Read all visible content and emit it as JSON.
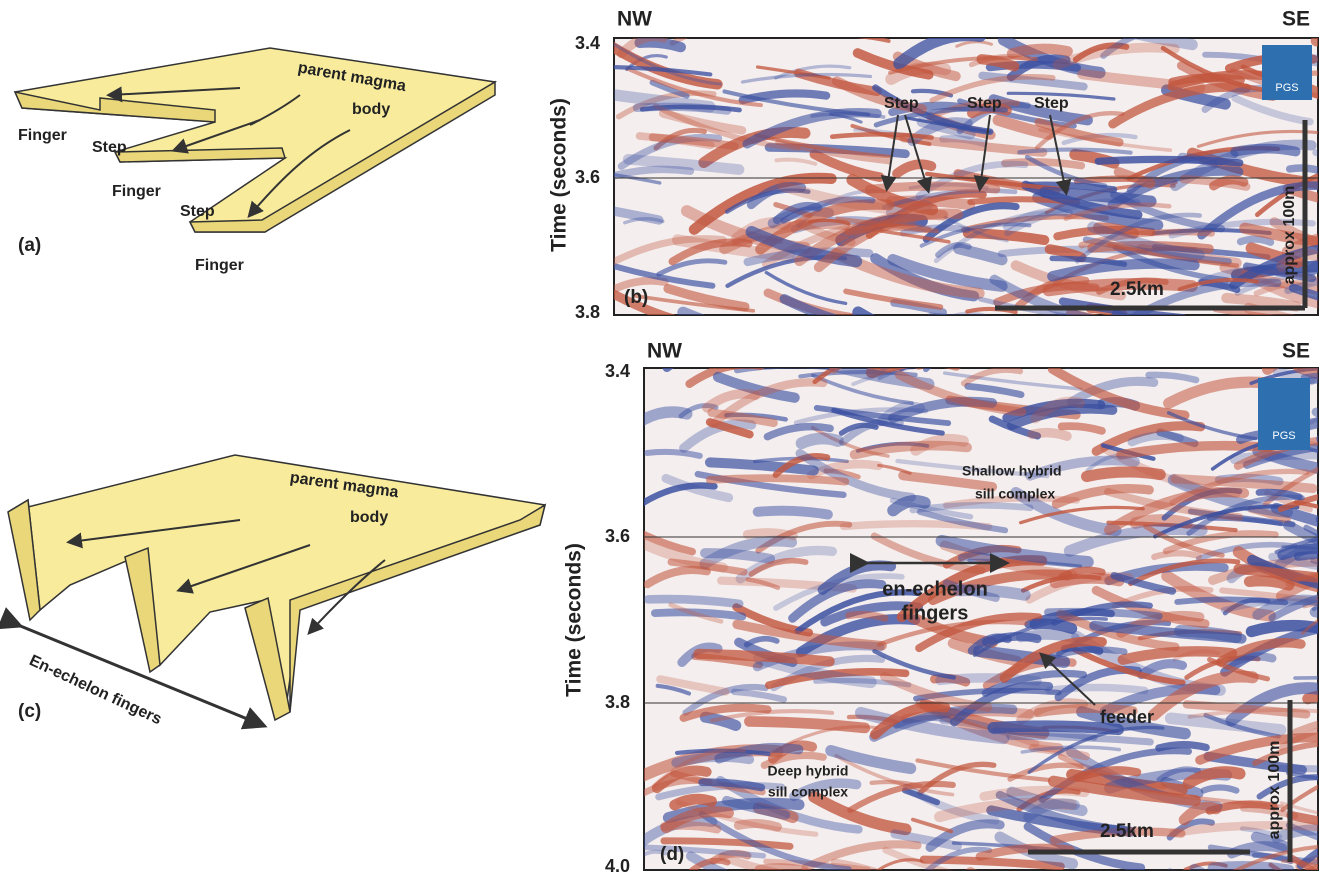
{
  "panels": [
    {
      "label": "(a)",
      "annotations": [
        "parent  magma",
        "body",
        "Finger",
        "Step",
        "Finger",
        "Step",
        "Finger"
      ]
    },
    {
      "label": "(b)",
      "left": "NW",
      "right": "SE",
      "axis_title": "Time  (seconds)",
      "ticks": [
        "3.4",
        "3.6",
        "3.8"
      ],
      "annotations": [
        "Step",
        "Step",
        "Step"
      ],
      "scale": "2.5km",
      "vertical_scale": "approx  100m",
      "logo": "PGS"
    },
    {
      "label": "(c)",
      "annotations": [
        "parent  magma",
        "body",
        "En-echelon  fingers"
      ]
    },
    {
      "label": "(d)",
      "left": "NW",
      "right": "SE",
      "axis_title": "Time  (seconds)",
      "ticks": [
        "3.4",
        "3.6",
        "3.8",
        "4.0"
      ],
      "annotations": [
        "Shallow  hybrid",
        "sill  complex",
        "en-echelon",
        "fingers",
        "feeder",
        "Deep  hybrid",
        "sill  complex"
      ],
      "scale": "2.5km",
      "vertical_scale": "approx  100m",
      "logo": "PGS"
    }
  ]
}
